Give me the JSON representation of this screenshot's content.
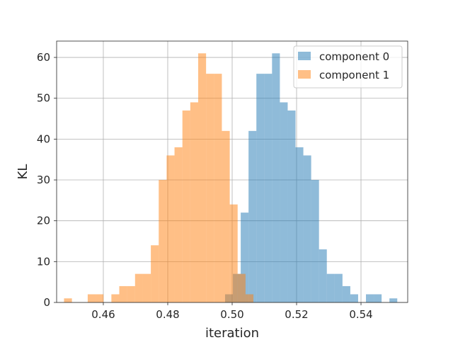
{
  "chart_data": {
    "type": "histogram",
    "title": "",
    "xlabel": "iteration",
    "ylabel": "KL",
    "xlim": [
      0.4455,
      0.5545
    ],
    "ylim": [
      0,
      64
    ],
    "x_ticks": [
      "0.46",
      "0.48",
      "0.50",
      "0.52",
      "0.54"
    ],
    "x_tick_values": [
      0.46,
      0.48,
      0.5,
      0.52,
      0.54
    ],
    "y_ticks": [
      "0",
      "10",
      "20",
      "30",
      "40",
      "50",
      "60"
    ],
    "y_tick_values": [
      0,
      10,
      20,
      30,
      40,
      50,
      60
    ],
    "grid": true,
    "legend_position": "top-right",
    "series": [
      {
        "name": "component 0",
        "color": "#1f77b4",
        "alpha": 0.5,
        "bin_start": 0.4978,
        "bin_width": 0.00243,
        "counts": [
          2,
          7,
          22,
          42,
          56,
          56,
          61,
          49,
          47,
          38,
          36,
          30,
          13,
          7,
          7,
          4,
          2,
          0,
          2,
          2,
          0,
          1
        ]
      },
      {
        "name": "component 1",
        "color": "#ff7f0e",
        "alpha": 0.5,
        "bin_start": 0.4478,
        "bin_width": 0.00245,
        "counts": [
          1,
          0,
          0,
          2,
          2,
          0,
          2,
          4,
          4,
          7,
          7,
          14,
          30,
          36,
          38,
          47,
          49,
          61,
          56,
          56,
          42,
          24,
          7,
          2
        ]
      }
    ]
  }
}
